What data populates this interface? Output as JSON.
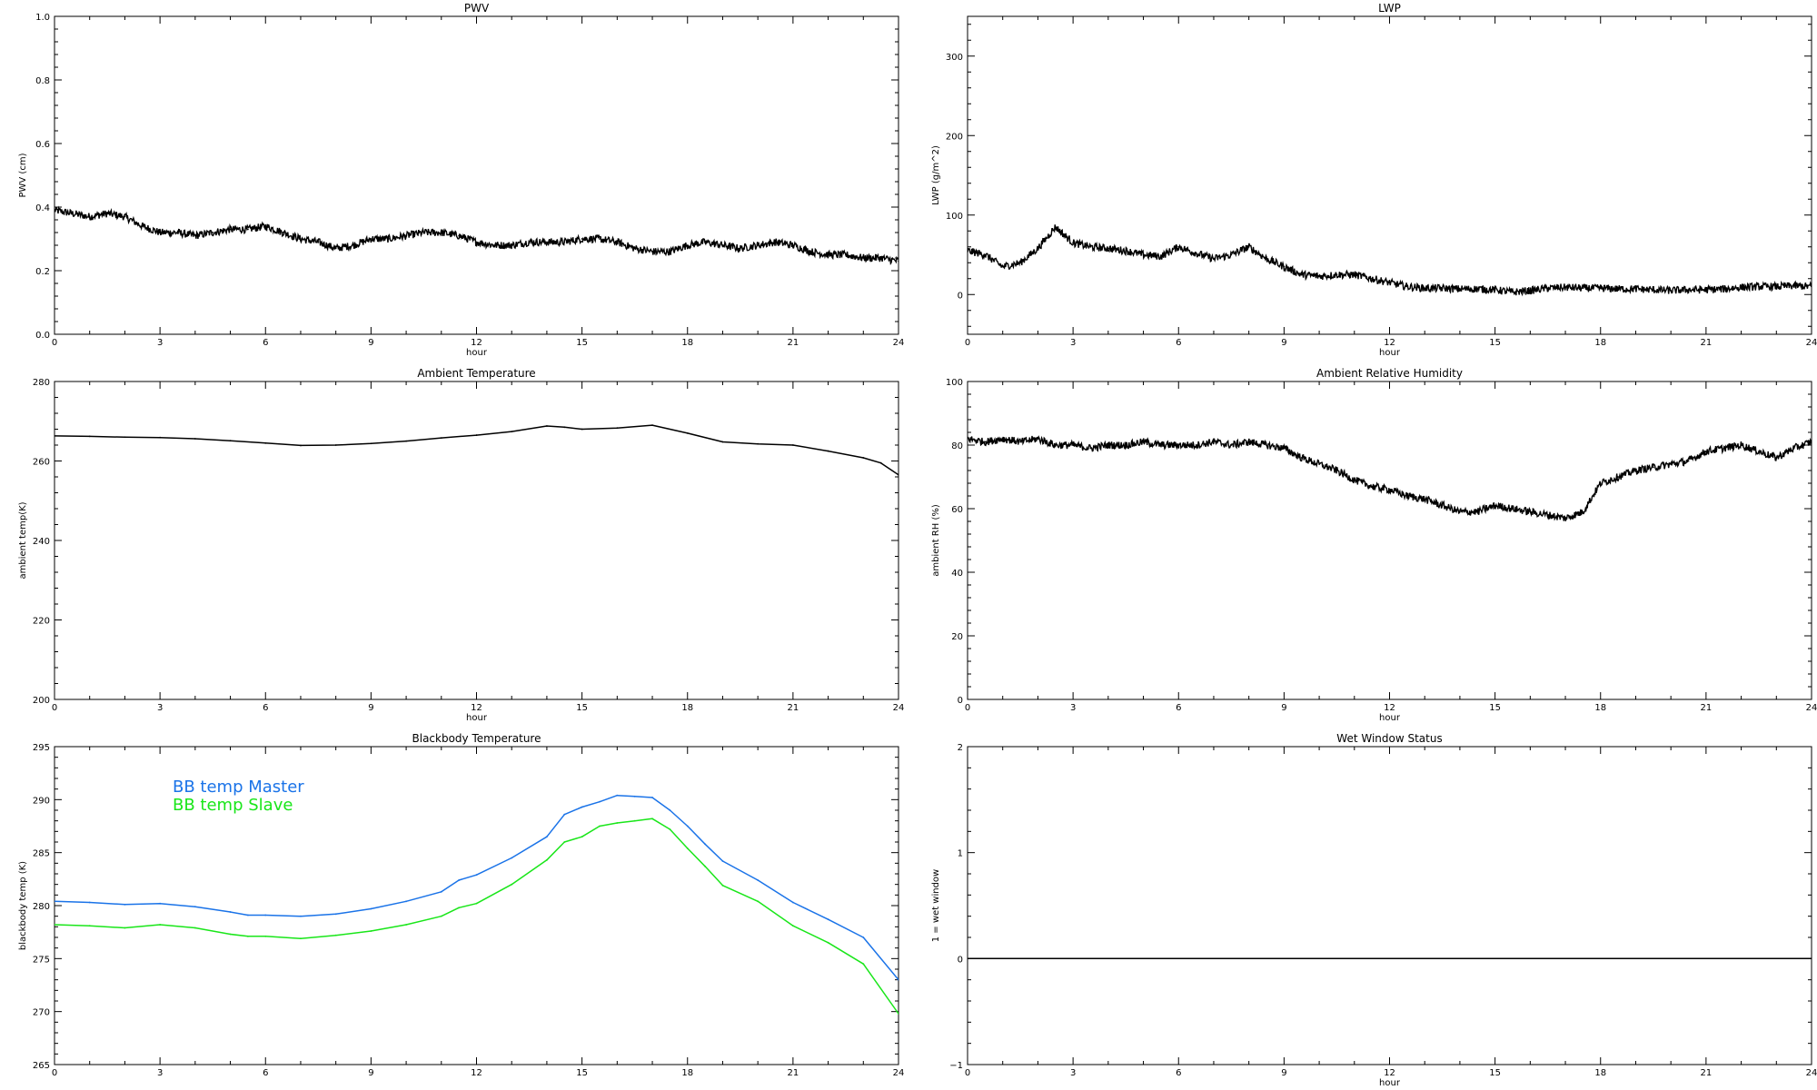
{
  "chart_data": [
    {
      "type": "line",
      "title": "PWV",
      "xlabel": "hour",
      "ylabel": "PWV (cm)",
      "xlim": [
        0,
        24
      ],
      "ylim": [
        0.0,
        1.0
      ],
      "xticks": [
        "0",
        "3",
        "6",
        "9",
        "12",
        "15",
        "18",
        "21",
        "24"
      ],
      "yticks": [
        "0.0",
        "0.2",
        "0.4",
        "0.6",
        "0.8",
        "1.0"
      ],
      "series": [
        {
          "color": "#000000",
          "style": "dense-noisy",
          "x": [
            0,
            0.5,
            1,
            1.5,
            2,
            2.5,
            3,
            3.5,
            4,
            4.5,
            5,
            5.5,
            6,
            6.5,
            7,
            7.5,
            8,
            8.5,
            9,
            9.5,
            10,
            10.5,
            11,
            11.5,
            12,
            12.5,
            13,
            13.5,
            14,
            14.5,
            15,
            15.5,
            16,
            16.5,
            17,
            17.5,
            18,
            18.5,
            19,
            19.5,
            20,
            20.5,
            21,
            21.5,
            22,
            22.5,
            23,
            23.5,
            24
          ],
          "y": [
            0.39,
            0.38,
            0.37,
            0.38,
            0.37,
            0.34,
            0.32,
            0.32,
            0.31,
            0.32,
            0.33,
            0.33,
            0.34,
            0.32,
            0.3,
            0.29,
            0.27,
            0.28,
            0.3,
            0.3,
            0.31,
            0.32,
            0.32,
            0.31,
            0.29,
            0.28,
            0.28,
            0.29,
            0.29,
            0.29,
            0.3,
            0.3,
            0.29,
            0.27,
            0.26,
            0.26,
            0.28,
            0.29,
            0.28,
            0.27,
            0.28,
            0.29,
            0.28,
            0.26,
            0.25,
            0.25,
            0.24,
            0.24,
            0.23
          ]
        }
      ]
    },
    {
      "type": "line",
      "title": "LWP",
      "xlabel": "hour",
      "ylabel": "LWP (g/m^2)",
      "xlim": [
        0,
        24
      ],
      "ylim": [
        -50,
        350
      ],
      "xticks": [
        "0",
        "3",
        "6",
        "9",
        "12",
        "15",
        "18",
        "21",
        "24"
      ],
      "yticks": [
        "0",
        "100",
        "200",
        "300"
      ],
      "series": [
        {
          "color": "#000000",
          "style": "dense-noisy",
          "x": [
            0,
            0.5,
            1,
            1.5,
            2,
            2.5,
            3,
            3.5,
            4,
            4.5,
            5,
            5.5,
            6,
            6.5,
            7,
            7.5,
            8,
            8.5,
            9,
            9.5,
            10,
            10.5,
            11,
            11.5,
            12,
            12.5,
            13,
            13.5,
            14,
            14.5,
            15,
            15.5,
            16,
            16.5,
            17,
            17.5,
            18,
            18.5,
            19,
            19.5,
            20,
            20.5,
            21,
            21.5,
            22,
            22.5,
            23,
            23.5,
            24
          ],
          "y": [
            55,
            50,
            35,
            40,
            58,
            85,
            65,
            60,
            58,
            55,
            50,
            48,
            60,
            52,
            45,
            50,
            60,
            45,
            35,
            25,
            23,
            25,
            25,
            20,
            15,
            10,
            8,
            8,
            7,
            7,
            6,
            3,
            5,
            8,
            9,
            8,
            8,
            7,
            7,
            6,
            5,
            6,
            6,
            7,
            9,
            10,
            10,
            11,
            10
          ]
        }
      ]
    },
    {
      "type": "line",
      "title": "Ambient Temperature",
      "xlabel": "hour",
      "ylabel": "ambient temp(K)",
      "xlim": [
        0,
        24
      ],
      "ylim": [
        200,
        280
      ],
      "xticks": [
        "0",
        "3",
        "6",
        "9",
        "12",
        "15",
        "18",
        "21",
        "24"
      ],
      "yticks": [
        "200",
        "220",
        "240",
        "260",
        "280"
      ],
      "series": [
        {
          "color": "#000000",
          "style": "line",
          "x": [
            0,
            1,
            2,
            3,
            4,
            5,
            6,
            7,
            8,
            9,
            10,
            11,
            12,
            13,
            14,
            14.5,
            15,
            16,
            17,
            18,
            19,
            20,
            21,
            22,
            23,
            23.5,
            24
          ],
          "y": [
            266.3,
            266.2,
            266.0,
            265.9,
            265.6,
            265.1,
            264.5,
            263.9,
            264.0,
            264.4,
            265.0,
            265.8,
            266.5,
            267.4,
            268.8,
            268.5,
            268.0,
            268.3,
            269.0,
            267.0,
            264.8,
            264.3,
            264.0,
            262.5,
            260.8,
            259.5,
            256.5
          ]
        }
      ]
    },
    {
      "type": "scatter",
      "title": "Ambient Relative Humidity",
      "xlabel": "hour",
      "ylabel": "ambient RH (%)",
      "xlim": [
        0,
        24
      ],
      "ylim": [
        0,
        100
      ],
      "xticks": [
        "0",
        "3",
        "6",
        "9",
        "12",
        "15",
        "18",
        "21",
        "24"
      ],
      "yticks": [
        "0",
        "20",
        "40",
        "60",
        "80",
        "100"
      ],
      "series": [
        {
          "color": "#000000",
          "style": "dense-noisy",
          "x": [
            0,
            0.5,
            1,
            1.5,
            2,
            2.5,
            3,
            3.5,
            4,
            4.5,
            5,
            5.5,
            6,
            6.5,
            7,
            7.5,
            8,
            8.5,
            9,
            9.5,
            10,
            10.5,
            11,
            11.5,
            12,
            12.5,
            13,
            13.5,
            14,
            14.5,
            15,
            15.5,
            16,
            16.5,
            17,
            17.5,
            18,
            18.5,
            19,
            19.5,
            20,
            20.5,
            21,
            21.5,
            22,
            22.5,
            23,
            23.5,
            24
          ],
          "y": [
            82,
            81,
            82,
            81,
            82,
            80,
            80,
            79,
            80,
            80,
            81,
            80,
            80,
            80,
            81,
            80,
            81,
            80,
            79,
            76,
            74,
            72,
            69,
            67,
            66,
            64,
            63,
            61,
            59,
            59,
            61,
            60,
            59,
            58,
            57,
            59,
            68,
            70,
            72,
            73,
            74,
            75,
            78,
            79,
            80,
            78,
            76,
            79,
            81
          ]
        }
      ]
    },
    {
      "type": "line",
      "title": "Blackbody Temperature",
      "xlabel": "",
      "ylabel": "blackbody temp (K)",
      "xlim": [
        0,
        24
      ],
      "ylim": [
        265,
        295
      ],
      "xticks": [
        "0",
        "3",
        "6",
        "9",
        "12",
        "15",
        "18",
        "21",
        "24"
      ],
      "yticks": [
        "265",
        "270",
        "275",
        "280",
        "285",
        "290",
        "295"
      ],
      "legend": "top-left",
      "series": [
        {
          "name": "BB temp Master",
          "color": "#1a73e8",
          "style": "line",
          "x": [
            0,
            1,
            2,
            3,
            4,
            5,
            5.5,
            6,
            7,
            8,
            9,
            10,
            11,
            11.5,
            12,
            13,
            14,
            14.5,
            15,
            15.5,
            16,
            16.5,
            17,
            17.5,
            18,
            18.5,
            19,
            20,
            21,
            22,
            23,
            24
          ],
          "y": [
            280.4,
            280.3,
            280.1,
            280.2,
            279.9,
            279.4,
            279.1,
            279.1,
            279.0,
            279.2,
            279.7,
            280.4,
            281.3,
            282.4,
            282.9,
            284.5,
            286.5,
            288.6,
            289.3,
            289.8,
            290.4,
            290.3,
            290.2,
            289.0,
            287.5,
            285.8,
            284.2,
            282.4,
            280.3,
            278.7,
            277.0,
            273.0
          ]
        },
        {
          "name": "BB temp Slave",
          "color": "#19e619",
          "style": "line",
          "x": [
            0,
            1,
            2,
            3,
            4,
            5,
            5.5,
            6,
            7,
            8,
            9,
            10,
            11,
            11.5,
            12,
            13,
            14,
            14.5,
            15,
            15.5,
            16,
            16.5,
            17,
            17.5,
            18,
            18.5,
            19,
            20,
            21,
            22,
            23,
            24
          ],
          "y": [
            278.2,
            278.1,
            277.9,
            278.2,
            277.9,
            277.3,
            277.1,
            277.1,
            276.9,
            277.2,
            277.6,
            278.2,
            279.0,
            279.8,
            280.2,
            282.0,
            284.3,
            286.0,
            286.5,
            287.5,
            287.8,
            288.0,
            288.2,
            287.2,
            285.4,
            283.7,
            281.9,
            280.4,
            278.1,
            276.5,
            274.5,
            269.8
          ]
        }
      ]
    },
    {
      "type": "line",
      "title": "Wet Window Status",
      "xlabel": "hour",
      "ylabel": "1 = wet window",
      "xlim": [
        0,
        24
      ],
      "ylim": [
        -1,
        2
      ],
      "xticks": [
        "0",
        "3",
        "6",
        "9",
        "12",
        "15",
        "18",
        "21",
        "24"
      ],
      "yticks": [
        "−1",
        "0",
        "1",
        "2"
      ],
      "series": [
        {
          "color": "#000000",
          "style": "line",
          "x": [
            0,
            24
          ],
          "y": [
            0,
            0
          ]
        }
      ]
    }
  ]
}
